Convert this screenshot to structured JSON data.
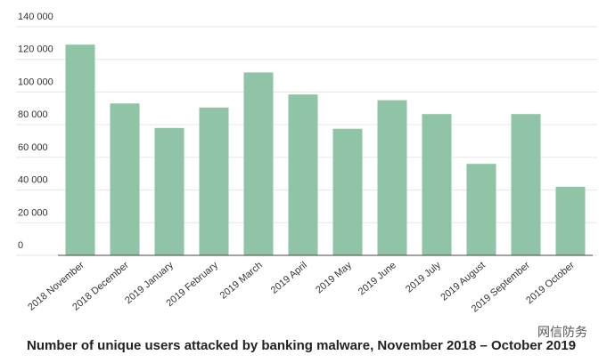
{
  "chart_data": {
    "type": "bar",
    "title": "Number of unique users attacked by banking malware, November 2018 – October 2019",
    "categories": [
      "2018 November",
      "2018 December",
      "2019 January",
      "2019 February",
      "2019 March",
      "2019 April",
      "2019 May",
      "2019 June",
      "2019 July",
      "2019 August",
      "2019 September",
      "2019 October"
    ],
    "values": [
      129000,
      93000,
      78000,
      90500,
      112000,
      98500,
      77500,
      95000,
      86500,
      56000,
      86500,
      42000
    ],
    "color": "#8fc4a6",
    "ylim": [
      0,
      140000
    ],
    "yticks": [
      0,
      {
        "value": 20000,
        "label": "20 000"
      },
      {
        "value": 40000,
        "label": "40 000"
      },
      {
        "value": 60000,
        "label": "60 000"
      },
      {
        "value": 80000,
        "label": "80 000"
      },
      {
        "value": 100000,
        "label": "100 000"
      },
      {
        "value": 120000,
        "label": "120 000"
      },
      {
        "value": 140000,
        "label": "140 000"
      }
    ],
    "grid": true
  },
  "watermark": "网信防务"
}
